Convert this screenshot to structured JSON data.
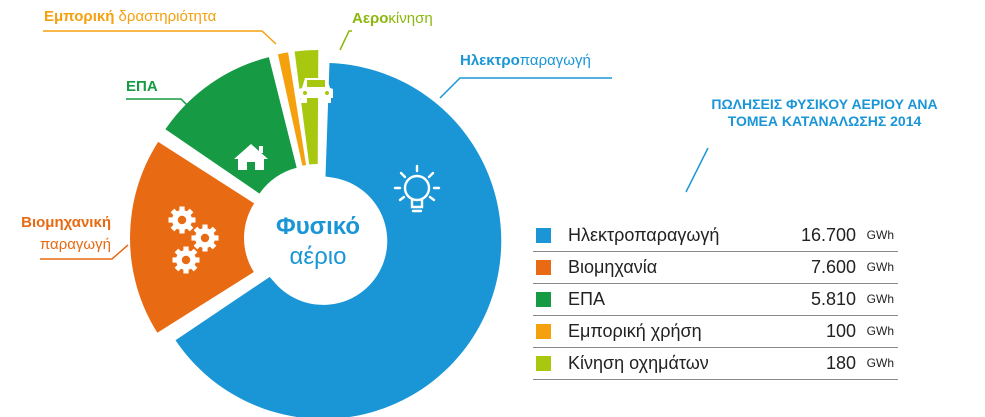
{
  "chart_data": {
    "type": "pie",
    "title": "ΠΩΛΗΣΕΙΣ ΦΥΣΙΚΟΥ ΑΕΡΙΟΥ ΑΝΑ ΤΟΜΕΑ ΚΑΤΑΝΑΛΩΣΗΣ 2014",
    "title_lines": [
      "ΠΩΛΗΣΕΙΣ ΦΥΣΙΚΟΥ ΑΕΡΙΟΥ ΑΝΑ",
      "ΤΟΜΕΑ ΚΑΤΑΝΑΛΩΣΗΣ 2014"
    ],
    "center_label": {
      "line1": "Φυσικό",
      "line2": "αέριο"
    },
    "unit": "GWh",
    "slices": [
      {
        "legend": "Ηλεκτροπαραγωγή",
        "value": 16700,
        "value_text": "16.700",
        "color": "#1a96d7",
        "callout_bold": "Ηλεκτρο",
        "callout_rest": "παραγωγή",
        "icon": "lightbulb-icon"
      },
      {
        "legend": "Βιομηχανία",
        "value": 7600,
        "value_text": "7.600",
        "color": "#e86a12",
        "callout_bold": "Βιομηχανική",
        "callout_rest": "παραγωγή",
        "icon": "gears-icon"
      },
      {
        "legend": "ΕΠΑ",
        "value": 5810,
        "value_text": "5.810",
        "color": "#169a44",
        "callout_bold": "ΕΠΑ",
        "callout_rest": "",
        "icon": "house-icon"
      },
      {
        "legend": "Εμπορική χρήση",
        "value": 100,
        "value_text": "100",
        "color": "#f5a00d",
        "callout_bold": "Εμπορική",
        "callout_rest": " δραστηριότητα",
        "icon": ""
      },
      {
        "legend": "Κίνηση οχημάτων",
        "value": 180,
        "value_text": "180",
        "color": "#a7c80f",
        "callout_bold": "Αερο",
        "callout_rest": "κίνηση",
        "icon": "car-icon"
      }
    ]
  }
}
